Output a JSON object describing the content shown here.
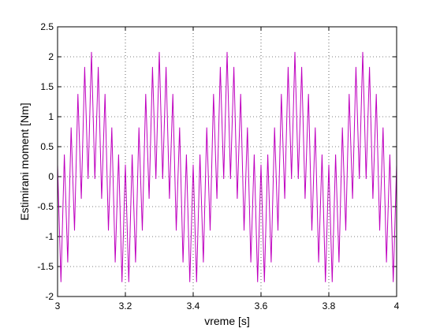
{
  "chart_data": {
    "type": "line",
    "xlabel": "vreme [s]",
    "ylabel": "Estimirani moment [Nm]",
    "xlim": [
      3,
      4
    ],
    "ylim": [
      -2,
      2.5
    ],
    "xticks": [
      3,
      3.2,
      3.4,
      3.6,
      3.8,
      4
    ],
    "yticks": [
      -2,
      -1.5,
      -1,
      -0.5,
      0,
      0.5,
      1,
      1.5,
      2,
      2.5
    ],
    "grid": true,
    "x": [
      3,
      3.01,
      3.02,
      3.03,
      3.04,
      3.05,
      3.06,
      3.07,
      3.08,
      3.09,
      3.1,
      3.11,
      3.12,
      3.13,
      3.14,
      3.15,
      3.16,
      3.17,
      3.18,
      3.19,
      3.2,
      3.21,
      3.22,
      3.23,
      3.24,
      3.25,
      3.26,
      3.27,
      3.28,
      3.29,
      3.3,
      3.31,
      3.32,
      3.33,
      3.34,
      3.35,
      3.36,
      3.37,
      3.38,
      3.39,
      3.4,
      3.41,
      3.42,
      3.43,
      3.44,
      3.45,
      3.46,
      3.47,
      3.48,
      3.49,
      3.5,
      3.51,
      3.52,
      3.53,
      3.54,
      3.55,
      3.56,
      3.57,
      3.58,
      3.59,
      3.6,
      3.61,
      3.62,
      3.63,
      3.64,
      3.65,
      3.66,
      3.67,
      3.68,
      3.69,
      3.7,
      3.71,
      3.72,
      3.73,
      3.74,
      3.75,
      3.76,
      3.77,
      3.78,
      3.79,
      3.8,
      3.81,
      3.82,
      3.83,
      3.84,
      3.85,
      3.86,
      3.87,
      3.88,
      3.89,
      3.9,
      3.91,
      3.92,
      3.93,
      3.94,
      3.95,
      3.96,
      3.97,
      3.98,
      3.99,
      4
    ],
    "series": [
      {
        "color": "#bf00bf",
        "values": [
          0.2,
          -1.76,
          0.37,
          -1.43,
          0.82,
          -0.9,
          1.38,
          -0.37,
          1.83,
          -0.04,
          2.08,
          -0.04,
          1.83,
          -0.37,
          1.38,
          -0.9,
          0.82,
          -1.43,
          0.37,
          -1.76,
          0.2,
          -1.76,
          0.37,
          -1.43,
          0.82,
          -0.9,
          1.38,
          -0.37,
          1.83,
          -0.04,
          2.08,
          -0.04,
          1.83,
          -0.37,
          1.38,
          -0.9,
          0.82,
          -1.43,
          0.37,
          -1.76,
          0.2,
          -1.76,
          0.37,
          -1.43,
          0.82,
          -0.9,
          1.38,
          -0.37,
          1.83,
          -0.04,
          2.08,
          -0.04,
          1.83,
          -0.37,
          1.38,
          -0.9,
          0.82,
          -1.43,
          0.37,
          -1.76,
          0.2,
          -1.76,
          0.37,
          -1.43,
          0.82,
          -0.9,
          1.38,
          -0.37,
          1.83,
          -0.04,
          2.08,
          -0.04,
          1.83,
          -0.37,
          1.38,
          -0.9,
          0.82,
          -1.43,
          0.37,
          -1.76,
          0.2,
          -1.76,
          0.37,
          -1.43,
          0.82,
          -0.9,
          1.38,
          -0.37,
          1.83,
          -0.04,
          2.08,
          -0.04,
          1.83,
          -0.37,
          1.38,
          -0.9,
          0.82,
          -1.43,
          0.37,
          -1.76,
          0.2
        ]
      }
    ]
  }
}
